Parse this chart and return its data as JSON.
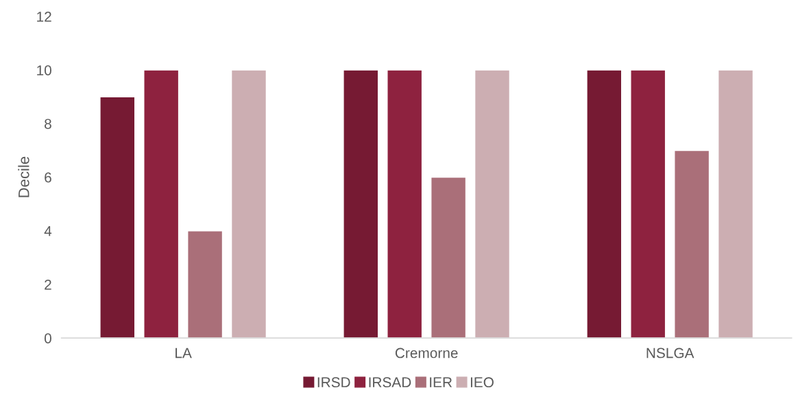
{
  "chart_data": {
    "type": "bar",
    "ylabel": "Decile",
    "categories": [
      "LA",
      "Cremorne",
      "NSLGA"
    ],
    "series": [
      {
        "name": "IRSD",
        "color": "#761a33",
        "values": [
          9,
          10,
          10
        ]
      },
      {
        "name": "IRSAD",
        "color": "#8e223f",
        "values": [
          10,
          10,
          10
        ]
      },
      {
        "name": "IER",
        "color": "#aa6f79",
        "values": [
          4,
          6,
          7
        ]
      },
      {
        "name": "IEO",
        "color": "#ccaeb2",
        "values": [
          10,
          10,
          10
        ]
      }
    ],
    "ylim": [
      0,
      12
    ],
    "yticks": [
      0,
      2,
      4,
      6,
      8,
      10,
      12
    ],
    "grid": false,
    "legend": "bottom"
  }
}
